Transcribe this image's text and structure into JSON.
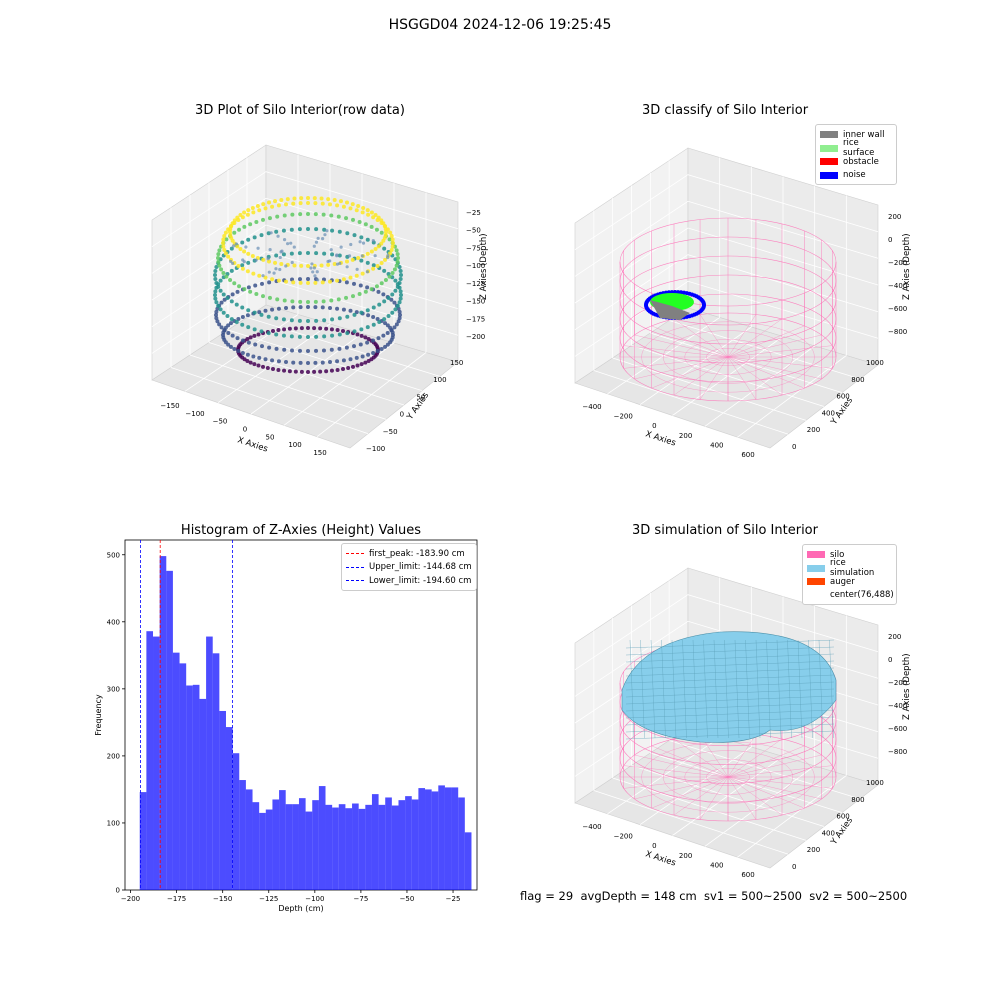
{
  "suptitle": "HSGGD04 2024-12-06 19:25:45",
  "plot1": {
    "title": "3D Plot of Silo Interior(row data)",
    "xlabel": "X Axies",
    "ylabel": "Y Axies",
    "zlabel": "Z Axies (Depth)",
    "xticks": [
      "−150",
      "−100",
      "−50",
      "0",
      "50",
      "100",
      "150"
    ],
    "yticks": [
      "−100",
      "−50",
      "0",
      "50",
      "100",
      "150"
    ],
    "zticks": [
      "−25",
      "−50",
      "−75",
      "−100",
      "−125",
      "−150",
      "−175",
      "−200"
    ],
    "colormap": [
      "#440154",
      "#3b528b",
      "#21918c",
      "#5ec962",
      "#fde725"
    ]
  },
  "plot2": {
    "title": "3D classify of Silo Interior",
    "xlabel": "X Axies",
    "ylabel": "Y Axies",
    "zlabel": "Z Axies (Depth)",
    "xticks": [
      "−400",
      "−200",
      "0",
      "200",
      "400",
      "600"
    ],
    "yticks": [
      "0",
      "200",
      "400",
      "600",
      "800",
      "1000"
    ],
    "zticks": [
      "200",
      "0",
      "−200",
      "−400",
      "−600",
      "−800"
    ],
    "legend": [
      {
        "label": "inner wall",
        "color": "#808080"
      },
      {
        "label": "rice surface",
        "color": "#90ee90"
      },
      {
        "label": "obstacle",
        "color": "#ff0000"
      },
      {
        "label": "noise",
        "color": "#0000ff"
      }
    ]
  },
  "plot4": {
    "title": "3D simulation of Silo Interior",
    "xlabel": "X Axies",
    "ylabel": "Y Axies",
    "zlabel": "Z Axies (Depth)",
    "xticks": [
      "−400",
      "−200",
      "0",
      "200",
      "400",
      "600"
    ],
    "yticks": [
      "0",
      "200",
      "400",
      "600",
      "800",
      "1000"
    ],
    "zticks": [
      "200",
      "0",
      "−200",
      "−400",
      "−600",
      "−800"
    ],
    "legend": [
      {
        "label": "silo",
        "color": "#ff69b4"
      },
      {
        "label": "rice simulation",
        "color": "#87ceeb"
      },
      {
        "label": "auger",
        "color": "#ff4500"
      },
      {
        "label": "center(76,488)",
        "color": ""
      }
    ]
  },
  "footer": "flag = 29  avgDepth = 148 cm  sv1 = 500~2500  sv2 = 500~2500",
  "chart_data": {
    "type": "bar",
    "title": "Histogram of Z-Axies (Height) Values",
    "xlabel": "Depth (cm)",
    "ylabel": "Frequency",
    "xlim": [
      -203,
      -12
    ],
    "ylim": [
      0,
      522
    ],
    "xticks": [
      -200,
      -175,
      -150,
      -125,
      -100,
      -75,
      -50,
      -25
    ],
    "xtick_labels": [
      "−200",
      "−175",
      "−150",
      "−125",
      "−100",
      "−75",
      "−50",
      "−25"
    ],
    "yticks": [
      0,
      100,
      200,
      300,
      400,
      500
    ],
    "bin_start": -195.0,
    "bin_width": 3.6,
    "values": [
      146,
      386,
      378,
      498,
      476,
      354,
      338,
      305,
      306,
      285,
      378,
      353,
      267,
      243,
      204,
      164,
      150,
      131,
      115,
      120,
      135,
      149,
      128,
      128,
      137,
      117,
      134,
      155,
      127,
      123,
      128,
      122,
      129,
      121,
      127,
      143,
      127,
      138,
      126,
      134,
      140,
      135,
      152,
      150,
      147,
      156,
      153,
      153,
      138,
      86
    ],
    "bar_color": "#0000ff",
    "bar_opacity": 0.7,
    "lines": [
      {
        "label": "first_peak: -183.90 cm",
        "x": -183.9,
        "color": "#ff0000"
      },
      {
        "label": "Upper_limit: -144.68 cm",
        "x": -144.68,
        "color": "#0000ff"
      },
      {
        "label": "Lower_limit: -194.60 cm",
        "x": -194.6,
        "color": "#0000ff"
      }
    ]
  }
}
